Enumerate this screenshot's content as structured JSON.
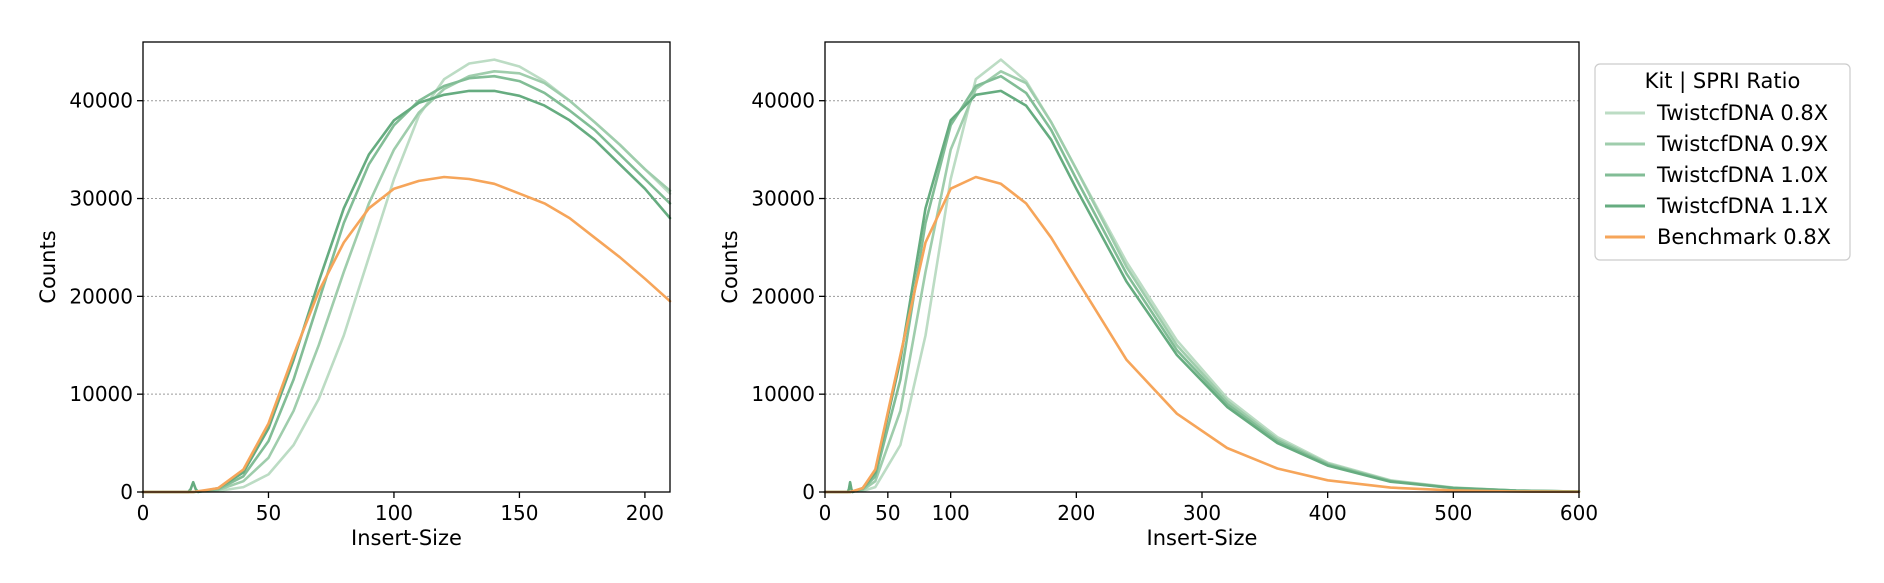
{
  "chart_data": [
    {
      "type": "line",
      "title": "",
      "xlabel": "Insert-Size",
      "ylabel": "Counts",
      "xlim": [
        0,
        210
      ],
      "ylim": [
        0,
        46000
      ],
      "xticks": [
        0,
        50,
        100,
        150,
        200
      ],
      "yticks": [
        0,
        10000,
        20000,
        30000,
        40000
      ],
      "grid": "horizontal dotted",
      "series": [
        {
          "name": "TwistcfDNA 0.8X",
          "color": "#bcdcc4",
          "x": [
            0,
            20,
            30,
            40,
            50,
            60,
            70,
            80,
            90,
            100,
            110,
            120,
            130,
            140,
            150,
            160,
            170,
            180,
            190,
            200,
            210
          ],
          "y": [
            0,
            0,
            100,
            500,
            1800,
            4800,
            9500,
            16000,
            24000,
            32000,
            38500,
            42200,
            43800,
            44200,
            43500,
            42000,
            40000,
            37800,
            35500,
            33000,
            30500
          ]
        },
        {
          "name": "TwistcfDNA 0.9X",
          "color": "#9fcdac",
          "x": [
            0,
            20,
            30,
            40,
            50,
            60,
            70,
            80,
            90,
            100,
            110,
            120,
            130,
            140,
            150,
            160,
            170,
            180,
            190,
            200,
            210
          ],
          "y": [
            0,
            0,
            200,
            1100,
            3500,
            8300,
            15000,
            22500,
            29500,
            35000,
            38800,
            41200,
            42500,
            43000,
            42800,
            41800,
            40000,
            37800,
            35500,
            33000,
            30800
          ]
        },
        {
          "name": "TwistcfDNA 1.0X",
          "color": "#82bd96",
          "x": [
            0,
            20,
            30,
            40,
            50,
            60,
            70,
            80,
            90,
            100,
            110,
            120,
            130,
            140,
            150,
            160,
            170,
            180,
            190,
            200,
            210
          ],
          "y": [
            0,
            0,
            300,
            1600,
            5200,
            11500,
            19500,
            27500,
            33500,
            37500,
            40000,
            41500,
            42300,
            42500,
            42000,
            40800,
            39000,
            37000,
            34500,
            32000,
            29500
          ]
        },
        {
          "name": "TwistcfDNA 1.1X",
          "color": "#66ac80",
          "x": [
            0,
            18,
            19,
            20,
            21,
            22,
            30,
            40,
            50,
            60,
            70,
            80,
            90,
            100,
            110,
            120,
            130,
            140,
            150,
            160,
            170,
            180,
            190,
            200,
            210
          ],
          "y": [
            0,
            0,
            300,
            1000,
            300,
            0,
            400,
            2000,
            6500,
            13500,
            21500,
            29000,
            34500,
            38000,
            39800,
            40600,
            41000,
            41000,
            40500,
            39500,
            38000,
            36000,
            33500,
            31000,
            28000
          ]
        },
        {
          "name": "Benchmark 0.8X",
          "color": "#f6a55a",
          "x": [
            0,
            20,
            30,
            40,
            50,
            60,
            70,
            80,
            90,
            100,
            110,
            120,
            130,
            140,
            150,
            160,
            170,
            180,
            190,
            200,
            210
          ],
          "y": [
            0,
            0,
            400,
            2300,
            7000,
            14000,
            20500,
            25500,
            29000,
            31000,
            31800,
            32200,
            32000,
            31500,
            30500,
            29500,
            28000,
            26000,
            24000,
            21800,
            19500
          ]
        }
      ]
    },
    {
      "type": "line",
      "title": "",
      "xlabel": "Insert-Size",
      "ylabel": "Counts",
      "xlim": [
        0,
        600
      ],
      "ylim": [
        0,
        46000
      ],
      "xticks": [
        0,
        50,
        100,
        200,
        300,
        400,
        500,
        600
      ],
      "yticks": [
        0,
        10000,
        20000,
        30000,
        40000
      ],
      "grid": "horizontal dotted",
      "series": [
        {
          "name": "TwistcfDNA 0.8X",
          "color": "#bcdcc4",
          "x": [
            0,
            20,
            30,
            40,
            60,
            80,
            100,
            120,
            140,
            160,
            180,
            200,
            240,
            280,
            320,
            360,
            400,
            450,
            500,
            550,
            600
          ],
          "y": [
            0,
            0,
            100,
            500,
            4800,
            16000,
            32000,
            42200,
            44200,
            42000,
            37800,
            33000,
            23500,
            15500,
            9600,
            5600,
            3000,
            1200,
            450,
            150,
            50
          ]
        },
        {
          "name": "TwistcfDNA 0.9X",
          "color": "#9fcdac",
          "x": [
            0,
            20,
            30,
            40,
            60,
            80,
            100,
            120,
            140,
            160,
            180,
            200,
            240,
            280,
            320,
            360,
            400,
            450,
            500,
            550,
            600
          ],
          "y": [
            0,
            0,
            200,
            1100,
            8300,
            22500,
            35000,
            41200,
            43000,
            41800,
            37800,
            33000,
            23000,
            15000,
            9300,
            5400,
            2900,
            1150,
            430,
            140,
            50
          ]
        },
        {
          "name": "TwistcfDNA 1.0X",
          "color": "#82bd96",
          "x": [
            0,
            20,
            30,
            40,
            60,
            80,
            100,
            120,
            140,
            160,
            180,
            200,
            240,
            280,
            320,
            360,
            400,
            450,
            500,
            550,
            600
          ],
          "y": [
            0,
            0,
            300,
            1600,
            11500,
            27500,
            37500,
            41500,
            42500,
            40800,
            37000,
            32000,
            22300,
            14500,
            9000,
            5200,
            2800,
            1100,
            420,
            140,
            50
          ]
        },
        {
          "name": "TwistcfDNA 1.1X",
          "color": "#66ac80",
          "x": [
            0,
            18,
            19,
            20,
            21,
            22,
            30,
            40,
            60,
            80,
            100,
            120,
            140,
            160,
            180,
            200,
            240,
            280,
            320,
            360,
            400,
            450,
            500,
            550,
            600
          ],
          "y": [
            0,
            0,
            300,
            1000,
            300,
            0,
            400,
            2000,
            13500,
            29000,
            38000,
            40600,
            41000,
            39500,
            36000,
            31000,
            21500,
            14000,
            8700,
            5000,
            2700,
            1050,
            400,
            130,
            50
          ]
        },
        {
          "name": "Benchmark 0.8X",
          "color": "#f6a55a",
          "x": [
            0,
            20,
            30,
            40,
            60,
            80,
            100,
            120,
            140,
            160,
            180,
            200,
            240,
            280,
            320,
            360,
            400,
            450,
            500,
            550,
            600
          ],
          "y": [
            0,
            0,
            400,
            2300,
            14000,
            25500,
            31000,
            32200,
            31500,
            29500,
            26000,
            21800,
            13500,
            8000,
            4500,
            2400,
            1200,
            450,
            160,
            50,
            20
          ]
        }
      ]
    }
  ],
  "legend": {
    "title": "Kit | SPRI Ratio",
    "placement": "right",
    "entries": [
      {
        "label": "TwistcfDNA 0.8X",
        "color": "#bcdcc4"
      },
      {
        "label": "TwistcfDNA 0.9X",
        "color": "#9fcdac"
      },
      {
        "label": "TwistcfDNA 1.0X",
        "color": "#82bd96"
      },
      {
        "label": "TwistcfDNA 1.1X",
        "color": "#66ac80"
      },
      {
        "label": "Benchmark 0.8X",
        "color": "#f6a55a"
      }
    ]
  }
}
